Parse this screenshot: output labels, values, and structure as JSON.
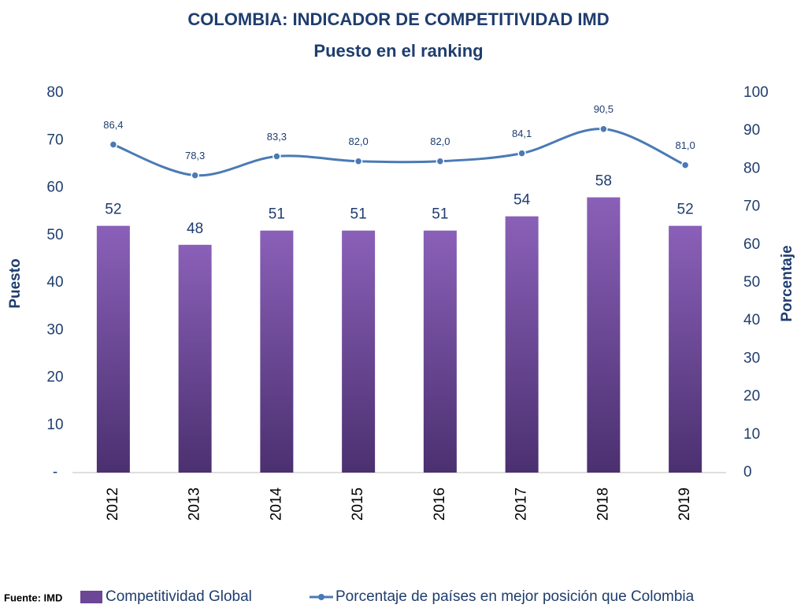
{
  "chart_data": {
    "type": "bar_line",
    "title": "COLOMBIA: INDICADOR DE COMPETITIVIDAD IMD",
    "subtitle": "Puesto en el ranking",
    "y_label": "Puesto",
    "y2_label": "Porcentaje",
    "source": "Fuente: IMD",
    "categories": [
      "2012",
      "2013",
      "2014",
      "2015",
      "2016",
      "2017",
      "2018",
      "2019"
    ],
    "series": [
      {
        "name": "Competitividad Global",
        "type": "bar",
        "color": "#6b4796",
        "values": [
          52,
          48,
          51,
          51,
          51,
          54,
          58,
          52
        ]
      },
      {
        "name": "Porcentaje de países en mejor posición que Colombia",
        "type": "line",
        "axis": "y2",
        "color": "#4a7ab5",
        "values": [
          86.4,
          78.3,
          83.3,
          82.0,
          82.0,
          84.1,
          90.5,
          81.0
        ],
        "value_labels": [
          "86,4",
          "78,3",
          "83,3",
          "82,0",
          "82,0",
          "84,1",
          "90,5",
          "81,0"
        ]
      }
    ],
    "ylim": [
      0,
      80
    ],
    "yticks": [
      {
        "value": 0,
        "label": "-"
      },
      10,
      20,
      30,
      40,
      50,
      60,
      70,
      80
    ],
    "y2lim": [
      0,
      100
    ],
    "y2ticks": [
      0,
      10,
      20,
      30,
      40,
      50,
      60,
      70,
      80,
      90,
      100
    ],
    "grid": false
  }
}
